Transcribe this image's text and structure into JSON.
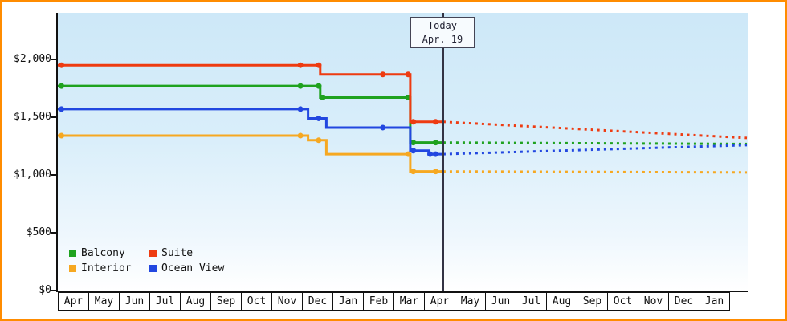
{
  "colors": {
    "frame_border": "#ff8c00",
    "axis": "#111111",
    "today_line": "#333344"
  },
  "chart_data": {
    "type": "line",
    "title": "",
    "x_unit": "months from first Apr (step/price-history timeline)",
    "y_unit": "USD",
    "x_axis": {
      "months": [
        "Apr",
        "May",
        "Jun",
        "Jul",
        "Aug",
        "Sep",
        "Oct",
        "Nov",
        "Dec",
        "Jan",
        "Feb",
        "Mar",
        "Apr",
        "May",
        "Jun",
        "Jul",
        "Aug",
        "Sep",
        "Oct",
        "Nov",
        "Dec",
        "Jan"
      ]
    },
    "y_axis": {
      "tick_labels": [
        "$2,000",
        "$1,500",
        "$1,000",
        "$500",
        "$0"
      ],
      "tick_values": [
        2000,
        1500,
        1000,
        500,
        0
      ],
      "ylim": [
        0,
        2400
      ]
    },
    "today": {
      "line1": "Today",
      "line2": "Apr. 19",
      "x": 12.63
    },
    "series": [
      {
        "name": "Balcony",
        "color": "#1fa21f",
        "steps": [
          [
            0,
            1770
          ],
          [
            8.6,
            1770
          ],
          [
            8.6,
            1670
          ],
          [
            11.55,
            1670
          ],
          [
            11.55,
            1280
          ],
          [
            12.63,
            1280
          ]
        ],
        "markers": [
          [
            0.12,
            1770
          ],
          [
            7.95,
            1770
          ],
          [
            8.55,
            1770
          ],
          [
            8.68,
            1670
          ],
          [
            11.48,
            1670
          ],
          [
            11.65,
            1280
          ],
          [
            12.38,
            1280
          ]
        ],
        "forecast": [
          [
            12.63,
            1280
          ],
          [
            22.58,
            1268
          ]
        ]
      },
      {
        "name": "Suite",
        "color": "#ee3b11",
        "steps": [
          [
            0,
            1950
          ],
          [
            8.6,
            1950
          ],
          [
            8.6,
            1870
          ],
          [
            11.55,
            1870
          ],
          [
            11.55,
            1460
          ],
          [
            12.63,
            1460
          ]
        ],
        "markers": [
          [
            0.12,
            1950
          ],
          [
            7.95,
            1950
          ],
          [
            8.55,
            1950
          ],
          [
            10.65,
            1870
          ],
          [
            11.48,
            1870
          ],
          [
            11.65,
            1460
          ],
          [
            12.38,
            1460
          ]
        ],
        "forecast": [
          [
            12.63,
            1460
          ],
          [
            22.58,
            1320
          ]
        ]
      },
      {
        "name": "Interior",
        "color": "#f6a821",
        "steps": [
          [
            0,
            1340
          ],
          [
            8.2,
            1340
          ],
          [
            8.2,
            1300
          ],
          [
            8.8,
            1300
          ],
          [
            8.8,
            1180
          ],
          [
            11.55,
            1180
          ],
          [
            11.55,
            1030
          ],
          [
            12.63,
            1030
          ]
        ],
        "markers": [
          [
            0.12,
            1340
          ],
          [
            7.95,
            1340
          ],
          [
            8.55,
            1300
          ],
          [
            11.48,
            1180
          ],
          [
            11.65,
            1030
          ],
          [
            12.38,
            1030
          ]
        ],
        "forecast": [
          [
            12.63,
            1030
          ],
          [
            22.58,
            1022
          ]
        ]
      },
      {
        "name": "Ocean View",
        "color": "#2247e0",
        "steps": [
          [
            0,
            1570
          ],
          [
            8.2,
            1570
          ],
          [
            8.2,
            1490
          ],
          [
            8.8,
            1490
          ],
          [
            8.8,
            1410
          ],
          [
            11.55,
            1410
          ],
          [
            11.55,
            1210
          ],
          [
            12.15,
            1210
          ],
          [
            12.15,
            1180
          ],
          [
            12.63,
            1180
          ]
        ],
        "markers": [
          [
            0.12,
            1570
          ],
          [
            7.95,
            1570
          ],
          [
            8.55,
            1490
          ],
          [
            10.65,
            1410
          ],
          [
            11.65,
            1210
          ],
          [
            12.2,
            1180
          ],
          [
            12.38,
            1180
          ]
        ],
        "forecast": [
          [
            12.63,
            1180
          ],
          [
            22.58,
            1258
          ]
        ]
      }
    ],
    "legend": {
      "items": [
        "Balcony",
        "Suite",
        "Interior",
        "Ocean View"
      ]
    }
  }
}
